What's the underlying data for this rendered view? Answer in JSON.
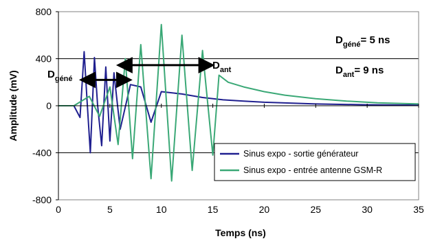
{
  "chart_data": {
    "type": "line",
    "xlabel": "Temps (ns)",
    "ylabel": "Amplitude (mV)",
    "xlim": [
      0,
      35
    ],
    "ylim": [
      -800,
      800
    ],
    "xticks": [
      0,
      5,
      10,
      15,
      20,
      25,
      30,
      35
    ],
    "yticks": [
      -800,
      -400,
      0,
      400,
      800
    ],
    "grid": "horizontal major gridlines",
    "legend_position": "bottom-right inside plot",
    "series": [
      {
        "name": "Sinus expo - sortie générateur",
        "color": "#1f1f8f",
        "x": [
          0,
          1.5,
          2.1,
          2.5,
          2.8,
          3.1,
          3.5,
          3.8,
          4.2,
          4.6,
          5.0,
          5.4,
          6,
          7,
          8,
          9,
          10,
          12,
          14,
          16,
          18,
          20,
          25,
          30,
          35
        ],
        "y": [
          0,
          0,
          -100,
          460,
          20,
          -400,
          410,
          10,
          -340,
          330,
          -300,
          280,
          -200,
          180,
          160,
          -140,
          120,
          100,
          70,
          50,
          40,
          30,
          15,
          8,
          5
        ]
      },
      {
        "name": "Sinus expo - entrée antenne GSM-R",
        "color": "#3aa876",
        "x": [
          0,
          1.5,
          3,
          4,
          5,
          5.8,
          6.5,
          7.2,
          8,
          9,
          10,
          11,
          12,
          13,
          14,
          15,
          15.6,
          16.5,
          18,
          20,
          22,
          25,
          28,
          31,
          35
        ],
        "y": [
          0,
          0,
          80,
          -90,
          160,
          -330,
          400,
          -450,
          520,
          -620,
          690,
          -640,
          600,
          -550,
          470,
          -420,
          260,
          200,
          160,
          120,
          90,
          60,
          40,
          25,
          15
        ]
      }
    ],
    "annotations": {
      "d_gene_label": "D",
      "d_gene_sub": "géné",
      "d_ant_label": "D",
      "d_ant_sub": "ant",
      "d_gene_value_label": "D",
      "d_gene_value_sub": "géné",
      "d_gene_value_text": "= 5 ns",
      "d_ant_value_label": "D",
      "d_ant_value_sub": "ant",
      "d_ant_value_text": "= 9 ns",
      "d_gene_arrow": {
        "x_start": 2.4,
        "x_end": 6.8,
        "y": 220
      },
      "d_ant_arrow": {
        "x_start": 6.0,
        "x_end": 14.8,
        "y": 345
      }
    }
  }
}
